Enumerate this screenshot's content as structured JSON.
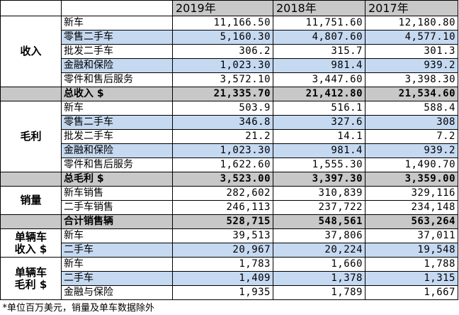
{
  "header": {
    "years": [
      "2019年",
      "2018年",
      "2017年"
    ]
  },
  "groups": [
    {
      "label": [
        "收入"
      ],
      "striped": true,
      "rows": [
        {
          "name": "新车",
          "values": [
            "11,166.50",
            "11,751.60",
            "12,180.80"
          ]
        },
        {
          "name": "零售二手车",
          "values": [
            "5,160.30",
            "4,807.60",
            "4,577.10"
          ]
        },
        {
          "name": "批发二手车",
          "values": [
            "306.2",
            "315.7",
            "301.3"
          ]
        },
        {
          "name": "金融和保险",
          "values": [
            "1,023.30",
            "981.4",
            "939.2"
          ]
        },
        {
          "name": "零件和售后服务",
          "values": [
            "3,572.10",
            "3,447.60",
            "3,398.30"
          ]
        }
      ],
      "total": {
        "name": "总收入 $",
        "values": [
          "21,335.70",
          "21,412.80",
          "21,534.60"
        ]
      }
    },
    {
      "label": [
        "毛利"
      ],
      "striped": true,
      "rows": [
        {
          "name": "新车",
          "values": [
            "503.9",
            "516.1",
            "588.4"
          ]
        },
        {
          "name": "零售二手车",
          "values": [
            "346.8",
            "327.6",
            "308"
          ]
        },
        {
          "name": "批发二手车",
          "values": [
            "21.2",
            "14.1",
            "7.2"
          ]
        },
        {
          "name": "金融和保险",
          "values": [
            "1,023.30",
            "981.4",
            "939.2"
          ]
        },
        {
          "name": "零件和售后服务",
          "values": [
            "1,622.60",
            "1,555.30",
            "1,490.70"
          ]
        }
      ],
      "total": {
        "name": "总毛利 $",
        "values": [
          "3,523.00",
          "3,397.30",
          "3,359.00"
        ]
      }
    },
    {
      "label": [
        "销量"
      ],
      "striped": false,
      "rows": [
        {
          "name": "新车销售",
          "values": [
            "282,602",
            "310,839",
            "329,116"
          ]
        },
        {
          "name": "二手车销售",
          "values": [
            "246,113",
            "237,722",
            "234,148"
          ]
        }
      ],
      "total": {
        "name": "合计销售辆",
        "values": [
          "528,715",
          "548,561",
          "563,264"
        ]
      }
    },
    {
      "label": [
        "单辆车",
        "收入 $"
      ],
      "striped": true,
      "rows": [
        {
          "name": "新车",
          "values": [
            "39,513",
            "37,806",
            "37,011"
          ]
        },
        {
          "name": "二手车",
          "values": [
            "20,967",
            "20,224",
            "19,548"
          ]
        }
      ]
    },
    {
      "label": [
        "单辆车",
        "毛利 $"
      ],
      "striped": true,
      "rows": [
        {
          "name": "新车",
          "values": [
            "1,783",
            "1,660",
            "1,788"
          ]
        },
        {
          "name": "二手车",
          "values": [
            "1,409",
            "1,378",
            "1,315"
          ]
        },
        {
          "name": "金融与保险",
          "values": [
            "1,935",
            "1,789",
            "1,667"
          ]
        }
      ]
    }
  ],
  "footnote": "*单位百万美元，销量及单车数据除外"
}
